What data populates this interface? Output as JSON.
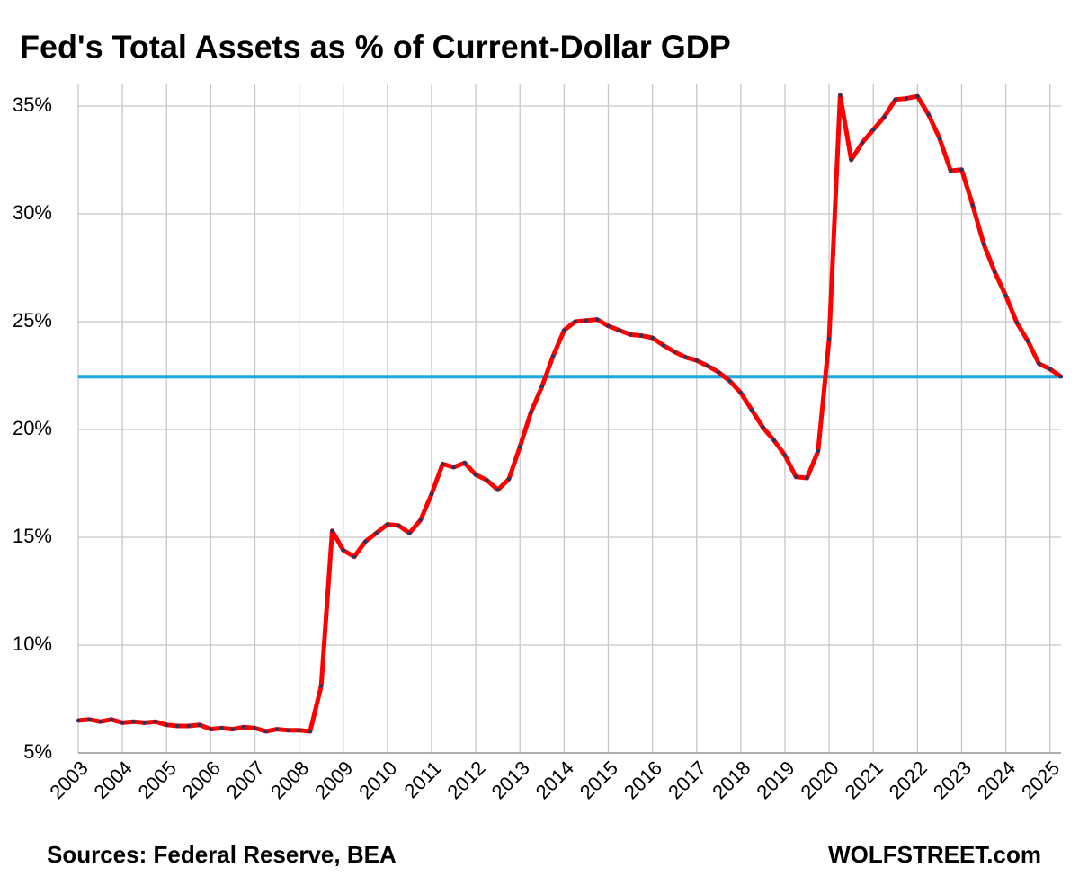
{
  "chart_data": {
    "type": "line",
    "title": "Fed's Total Assets as % of Current-Dollar GDP",
    "source": "Sources: Federal Reserve, BEA",
    "watermark": "WOLFSTREET.com",
    "x": [
      2003,
      2003.25,
      2003.5,
      2003.75,
      2004,
      2004.25,
      2004.5,
      2004.75,
      2005,
      2005.25,
      2005.5,
      2005.75,
      2006,
      2006.25,
      2006.5,
      2006.75,
      2007,
      2007.25,
      2007.5,
      2007.75,
      2008,
      2008.25,
      2008.5,
      2008.75,
      2009,
      2009.25,
      2009.5,
      2009.75,
      2010,
      2010.25,
      2010.5,
      2010.75,
      2011,
      2011.25,
      2011.5,
      2011.75,
      2012,
      2012.25,
      2012.5,
      2012.75,
      2013,
      2013.25,
      2013.5,
      2013.75,
      2014,
      2014.25,
      2014.5,
      2014.75,
      2015,
      2015.25,
      2015.5,
      2015.75,
      2016,
      2016.25,
      2016.5,
      2016.75,
      2017,
      2017.25,
      2017.5,
      2017.75,
      2018,
      2018.25,
      2018.5,
      2018.75,
      2019,
      2019.25,
      2019.5,
      2019.75,
      2020,
      2020.25,
      2020.5,
      2020.75,
      2021,
      2021.25,
      2021.5,
      2021.75,
      2022,
      2022.25,
      2022.5,
      2022.75,
      2023,
      2023.25,
      2023.5,
      2023.75,
      2024,
      2024.25,
      2024.5,
      2024.75,
      2025,
      2025.25
    ],
    "series": [
      {
        "color": "#ff0000",
        "marker_color": "#1f3864",
        "values": [
          6.5,
          6.55,
          6.45,
          6.55,
          6.4,
          6.45,
          6.4,
          6.45,
          6.3,
          6.25,
          6.25,
          6.3,
          6.1,
          6.15,
          6.1,
          6.2,
          6.15,
          6.0,
          6.1,
          6.05,
          6.05,
          6.0,
          8.1,
          15.3,
          14.4,
          14.1,
          14.8,
          15.2,
          15.6,
          15.55,
          15.2,
          15.8,
          17.0,
          18.4,
          18.25,
          18.45,
          17.9,
          17.65,
          17.2,
          17.7,
          19.2,
          20.8,
          22.0,
          23.4,
          24.6,
          25.0,
          25.05,
          25.1,
          24.8,
          24.6,
          24.4,
          24.35,
          24.25,
          23.9,
          23.6,
          23.35,
          23.2,
          22.95,
          22.65,
          22.25,
          21.7,
          20.9,
          20.1,
          19.5,
          18.8,
          17.8,
          17.75,
          19.0,
          24.2,
          35.5,
          32.5,
          33.3,
          33.9,
          34.5,
          35.3,
          35.35,
          35.45,
          34.6,
          33.5,
          32.0,
          32.05,
          30.4,
          28.6,
          27.3,
          26.2,
          24.95,
          24.1,
          23.05,
          22.8,
          22.45
        ]
      }
    ],
    "reference_line": {
      "value": 22.45,
      "color": "#1ba8e0"
    },
    "xlim": [
      2003,
      2025.25
    ],
    "xticks": [
      2003,
      2004,
      2005,
      2006,
      2007,
      2008,
      2009,
      2010,
      2011,
      2012,
      2013,
      2014,
      2015,
      2016,
      2017,
      2018,
      2019,
      2020,
      2021,
      2022,
      2023,
      2024,
      2025
    ],
    "ylim": [
      5,
      36
    ],
    "yticks": [
      {
        "value": 5,
        "label": "5%"
      },
      {
        "value": 10,
        "label": "10%"
      },
      {
        "value": 15,
        "label": "15%"
      },
      {
        "value": 20,
        "label": "20%"
      },
      {
        "value": 25,
        "label": "25%"
      },
      {
        "value": 30,
        "label": "30%"
      },
      {
        "value": 35,
        "label": "35%"
      }
    ],
    "grid": true
  }
}
